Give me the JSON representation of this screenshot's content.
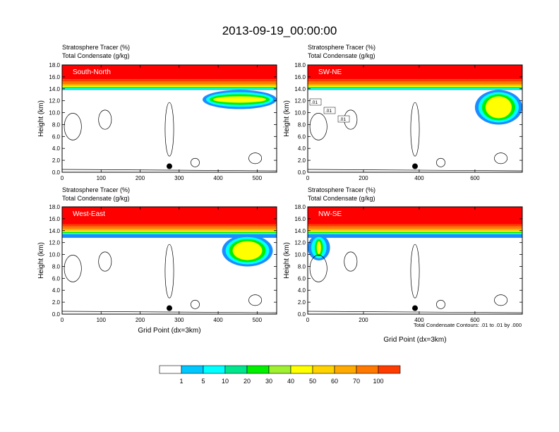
{
  "title": "2013-09-19_00:00:00",
  "colors": {
    "scale": [
      "#ffffff",
      "#1e8cff",
      "#00c8ff",
      "#00ffff",
      "#00e68c",
      "#00f000",
      "#a0f032",
      "#ffff00",
      "#ffd200",
      "#ffaa00",
      "#ff7800",
      "#ff3c00",
      "#ff0000"
    ],
    "panel_label": "#ffffff",
    "axis": "#000000",
    "contour": "#000000"
  },
  "legend": {
    "labels": [
      "1",
      "5",
      "10",
      "20",
      "30",
      "40",
      "50",
      "60",
      "70",
      "100"
    ]
  },
  "footnote": "Total Condensate Contours: .01 to .01 by .000",
  "chart_data": [
    {
      "type": "contour",
      "panel_label": "South-North",
      "field_title": "Stratosphere Tracer   (%)",
      "field_subtitle": "Total Condensate   (g/kg)",
      "ylabel": "Height (km)",
      "xlabel": "",
      "xlim": [
        0,
        550
      ],
      "ylim": [
        0,
        18
      ],
      "xticks": [
        "0",
        "100",
        "200",
        "300",
        "400",
        "500"
      ],
      "yticks": [
        "0.0",
        "2.0",
        "4.0",
        "6.0",
        "8.0",
        "10.0",
        "12.0",
        "14.0",
        "16.0",
        "18.0"
      ],
      "marker_point": [
        275,
        1.0
      ],
      "tropopause_km": 14.0,
      "intrusion": {
        "x_start": 360,
        "x_end": 550,
        "bottom_km": 10.6
      },
      "contour_labels": []
    },
    {
      "type": "contour",
      "panel_label": "SW-NE",
      "field_title": "Stratosphere Tracer   (%)",
      "field_subtitle": "Total Condensate   (g/kg)",
      "ylabel": "Height (km)",
      "xlabel": "",
      "xlim": [
        0,
        770
      ],
      "ylim": [
        0,
        18
      ],
      "xticks": [
        "0",
        "200",
        "400",
        "600"
      ],
      "yticks": [
        "0.0",
        "2.0",
        "4.0",
        "6.0",
        "8.0",
        "10.0",
        "12.0",
        "14.0",
        "16.0",
        "18.0"
      ],
      "marker_point": [
        385,
        1.0
      ],
      "tropopause_km": 14.0,
      "intrusion": {
        "x_start": 600,
        "x_end": 770,
        "bottom_km": 8.0
      },
      "contour_labels": [
        ".01",
        ".01",
        ".01"
      ]
    },
    {
      "type": "contour",
      "panel_label": "West-East",
      "field_title": "Stratosphere Tracer   (%)",
      "field_subtitle": "Total Condensate   (g/kg)",
      "ylabel": "Height (km)",
      "xlabel": "Grid Point (dx=3km)",
      "xlim": [
        0,
        550
      ],
      "ylim": [
        0,
        18
      ],
      "xticks": [
        "0",
        "100",
        "200",
        "300",
        "400",
        "500"
      ],
      "yticks": [
        "0.0",
        "2.0",
        "4.0",
        "6.0",
        "8.0",
        "10.0",
        "12.0",
        "14.0",
        "16.0",
        "18.0"
      ],
      "marker_point": [
        275,
        1.0
      ],
      "tropopause_km": 13.5,
      "intrusion": {
        "x_start": 410,
        "x_end": 540,
        "bottom_km": 8.0
      },
      "contour_labels": []
    },
    {
      "type": "contour",
      "panel_label": "NW-SE",
      "field_title": "Stratosphere Tracer   (%)",
      "field_subtitle": "Total Condensate   (g/kg)",
      "ylabel": "Height (km)",
      "xlabel": "Grid Point (dx=3km)",
      "xlim": [
        0,
        770
      ],
      "ylim": [
        0,
        18
      ],
      "xticks": [
        "0",
        "200",
        "400",
        "600"
      ],
      "yticks": [
        "0.0",
        "2.0",
        "4.0",
        "6.0",
        "8.0",
        "10.0",
        "12.0",
        "14.0",
        "16.0",
        "18.0"
      ],
      "marker_point": [
        385,
        1.0
      ],
      "tropopause_km": 13.5,
      "intrusion": {
        "x_start": 0,
        "x_end": 80,
        "bottom_km": 9.0
      },
      "contour_labels": []
    }
  ]
}
